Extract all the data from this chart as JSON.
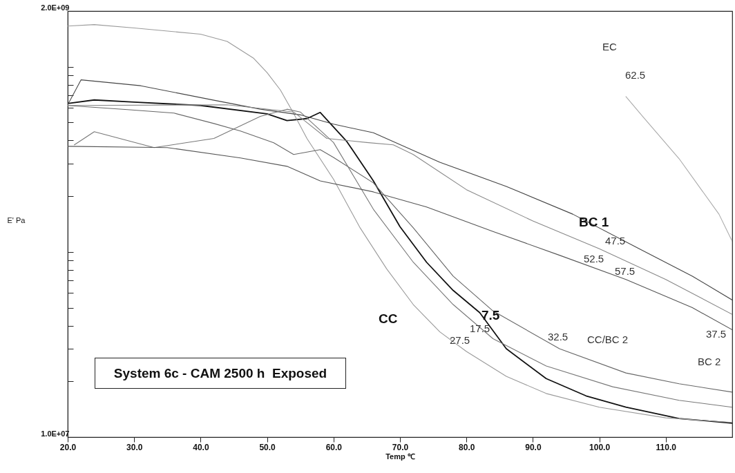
{
  "chart_data": {
    "type": "line",
    "title": "System 6c - CAM 2500 h  Exposed",
    "xlabel": "Temp ℃",
    "ylabel": "E' Pa",
    "log": true,
    "xlim": [
      20,
      120
    ],
    "xticks": [
      {
        "value": 20,
        "label": "20.0"
      },
      {
        "value": 30,
        "label": "30.0"
      },
      {
        "value": 40,
        "label": "40.0"
      },
      {
        "value": 50,
        "label": "50.0"
      },
      {
        "value": 60,
        "label": "60.0"
      },
      {
        "value": 70,
        "label": "70.0"
      },
      {
        "value": 80,
        "label": "80.0"
      },
      {
        "value": 90,
        "label": "90.0"
      },
      {
        "value": 100,
        "label": "100.0"
      },
      {
        "value": 110,
        "label": "110.0"
      }
    ],
    "ylim": [
      10000000,
      2000000000
    ],
    "yticks": [
      {
        "value": 10000000,
        "label": "1.0E+07"
      },
      {
        "value": 20000000,
        "label": null
      },
      {
        "value": 30000000,
        "label": null
      },
      {
        "value": 40000000,
        "label": null
      },
      {
        "value": 50000000,
        "label": null
      },
      {
        "value": 60000000,
        "label": null
      },
      {
        "value": 70000000,
        "label": null
      },
      {
        "value": 80000000,
        "label": null
      },
      {
        "value": 90000000,
        "label": null
      },
      {
        "value": 100000000,
        "label": null
      },
      {
        "value": 200000000,
        "label": null
      },
      {
        "value": 300000000,
        "label": null
      },
      {
        "value": 400000000,
        "label": null
      },
      {
        "value": 500000000,
        "label": null
      },
      {
        "value": 600000000,
        "label": null
      },
      {
        "value": 700000000,
        "label": null
      },
      {
        "value": 800000000,
        "label": null
      },
      {
        "value": 900000000,
        "label": null
      },
      {
        "value": 1000000000,
        "label": null
      },
      {
        "value": 2000000000,
        "label": "2.0E+09"
      }
    ],
    "series": [
      {
        "color": "#111111",
        "x": [
          20,
          24,
          30,
          40,
          50,
          53,
          56,
          58,
          62,
          66,
          70,
          74,
          78,
          82,
          86,
          92,
          98,
          104,
          112,
          120
        ],
        "values": [
          634000000,
          662000000,
          645000000,
          618000000,
          557000000,
          512000000,
          525000000,
          567000000,
          395000000,
          242000000,
          137000000,
          88000000,
          62000000,
          47000000,
          30000000,
          20700000,
          16700000,
          14500000,
          12600000,
          11900000
        ]
      },
      {
        "color": "#9a9a9a",
        "x": [
          20,
          24,
          30,
          40,
          44,
          48,
          50,
          52,
          54,
          56,
          60,
          64,
          68,
          72,
          76,
          80,
          86,
          92,
          100,
          110,
          120
        ],
        "values": [
          1660000000,
          1690000000,
          1620000000,
          1500000000,
          1370000000,
          1110000000,
          930000000,
          750000000,
          560000000,
          410000000,
          247000000,
          135000000,
          81000000,
          52000000,
          37000000,
          29000000,
          21300000,
          17200000,
          14500000,
          12700000,
          12000000
        ]
      },
      {
        "color": "#444444",
        "x": [
          20,
          22,
          31,
          42,
          49,
          55,
          60,
          66,
          76,
          86,
          96,
          106,
          114,
          120
        ],
        "values": [
          623000000,
          850000000,
          790000000,
          660000000,
          590000000,
          550000000,
          490000000,
          440000000,
          305000000,
          226000000,
          160000000,
          104000000,
          74000000,
          55000000
        ]
      },
      {
        "color": "#666666",
        "x": [
          20,
          29,
          36,
          42,
          46,
          51,
          54,
          58,
          60,
          66,
          72,
          78,
          84,
          94,
          104,
          112,
          120
        ],
        "values": [
          618000000,
          587000000,
          562000000,
          494000000,
          450000000,
          389000000,
          336000000,
          357000000,
          324000000,
          236000000,
          135000000,
          74000000,
          48000000,
          30000000,
          22200000,
          19400000,
          17500000
        ]
      },
      {
        "color": "#777777",
        "x": [
          21,
          24,
          33,
          42,
          49,
          53,
          55,
          60,
          66,
          72,
          78,
          84,
          92,
          102,
          112,
          120
        ],
        "values": [
          379000000,
          446000000,
          366000000,
          410000000,
          540000000,
          590000000,
          570000000,
          390000000,
          170000000,
          88000000,
          52000000,
          34000000,
          24200000,
          18700000,
          15800000,
          14500000
        ]
      },
      {
        "color": "#555555",
        "x": [
          20,
          35,
          46,
          53,
          58,
          66,
          74,
          84,
          94,
          104,
          114,
          120
        ],
        "values": [
          372000000,
          366000000,
          322000000,
          290000000,
          242000000,
          211000000,
          175000000,
          129000000,
          96000000,
          71000000,
          50000000,
          38000000
        ]
      },
      {
        "color": "#888888",
        "x": [
          20,
          44,
          54,
          59,
          65,
          69,
          72,
          80,
          90,
          100,
          110,
          120
        ],
        "values": [
          618000000,
          623000000,
          570000000,
          410000000,
          390000000,
          379000000,
          336000000,
          217000000,
          147000000,
          104000000,
          71000000,
          46000000
        ]
      },
      {
        "color": "#aaaaaa",
        "x": [
          104,
          106.5,
          112,
          118,
          120
        ],
        "values": [
          690000000,
          540000000,
          319000000,
          160000000,
          114000000
        ]
      }
    ],
    "annotations": [
      "EC",
      "62.5",
      "BC 1",
      "47.5",
      "52.5",
      "57.5",
      "CC",
      "7.5",
      "17.5",
      "27.5",
      "32.5",
      "CC/BC 2",
      "37.5",
      "BC 2"
    ]
  }
}
